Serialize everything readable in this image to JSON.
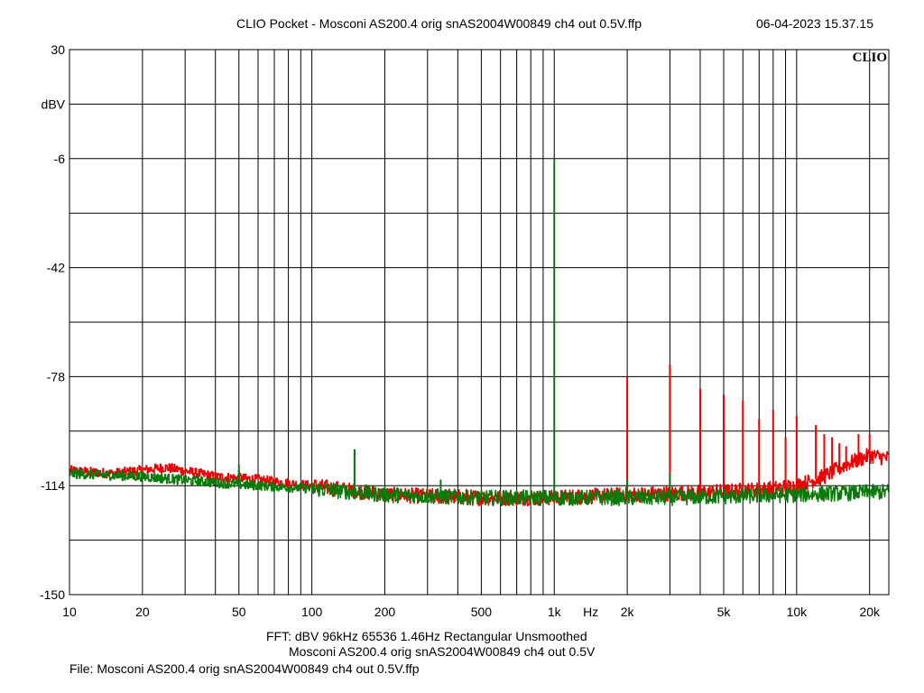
{
  "header": {
    "title": "CLIO Pocket - Mosconi AS200.4 orig snAS2004W00849 ch4 out 0.5V.ffp",
    "datetime": "06-04-2023 15.37.15"
  },
  "logo": "CLIO",
  "footer": {
    "line1": "FFT:  dBV  96kHz   65536  1.46Hz  Rectangular  Unsmoothed",
    "line2": "Mosconi AS200.4 orig snAS2004W00849 ch4 out 0.5V",
    "line3": "File: Mosconi AS200.4 orig snAS2004W00849 ch4 out 0.5V.ffp"
  },
  "colors": {
    "red": "#ee0000",
    "green": "#0a7a0a",
    "grid": "#000000"
  },
  "chart_data": {
    "type": "line",
    "x_scale": "log",
    "xlim": [
      10,
      24000
    ],
    "ylim": [
      -150,
      30
    ],
    "ylabel": "dBV",
    "xlabel": "Hz",
    "grid": true,
    "y_tick_labels": [
      "30",
      "-6",
      "-42",
      "-78",
      "-114",
      "-150"
    ],
    "y_tick_values": [
      30,
      -6,
      -42,
      -78,
      -114,
      -150
    ],
    "y_grid_values": [
      30,
      12,
      -6,
      -24,
      -42,
      -60,
      -78,
      -96,
      -114,
      -132,
      -150
    ],
    "x_tick_labels": [
      "10",
      "20",
      "50",
      "100",
      "200",
      "500",
      "1k",
      "2k",
      "5k",
      "10k",
      "20k"
    ],
    "x_tick_values": [
      10,
      20,
      50,
      100,
      200,
      500,
      1000,
      2000,
      5000,
      10000,
      20000
    ],
    "series": [
      {
        "color": "red",
        "noise_floor": [
          [
            10,
            -109
          ],
          [
            15,
            -110
          ],
          [
            25,
            -108
          ],
          [
            40,
            -111
          ],
          [
            60,
            -112
          ],
          [
            100,
            -114
          ],
          [
            200,
            -117
          ],
          [
            500,
            -118
          ],
          [
            1000,
            -118
          ],
          [
            2000,
            -117
          ],
          [
            5000,
            -116
          ],
          [
            8000,
            -115
          ],
          [
            10000,
            -114
          ],
          [
            13000,
            -111
          ],
          [
            16000,
            -107
          ],
          [
            20000,
            -104
          ],
          [
            24000,
            -105
          ]
        ],
        "peaks": [
          [
            50,
            -109
          ],
          [
            150,
            -102
          ],
          [
            2000,
            -78
          ],
          [
            3000,
            -74
          ],
          [
            4000,
            -82
          ],
          [
            5000,
            -84
          ],
          [
            6000,
            -86
          ],
          [
            7000,
            -92
          ],
          [
            8000,
            -89
          ],
          [
            9000,
            -98
          ],
          [
            10000,
            -91
          ],
          [
            12000,
            -94
          ],
          [
            13000,
            -97
          ],
          [
            14000,
            -98
          ],
          [
            15000,
            -100
          ],
          [
            16000,
            -101
          ],
          [
            18000,
            -97
          ],
          [
            20000,
            -97
          ]
        ]
      },
      {
        "color": "green",
        "noise_floor": [
          [
            10,
            -110
          ],
          [
            20,
            -111
          ],
          [
            40,
            -113
          ],
          [
            60,
            -114
          ],
          [
            100,
            -115
          ],
          [
            200,
            -117
          ],
          [
            500,
            -118
          ],
          [
            1000,
            -118
          ],
          [
            3000,
            -118
          ],
          [
            10000,
            -117
          ],
          [
            24000,
            -116
          ]
        ],
        "peaks": [
          [
            50,
            -107
          ],
          [
            150,
            -102
          ],
          [
            340,
            -112
          ],
          [
            1000,
            -6
          ],
          [
            2000,
            -112
          ],
          [
            3000,
            -110
          ]
        ]
      }
    ]
  }
}
